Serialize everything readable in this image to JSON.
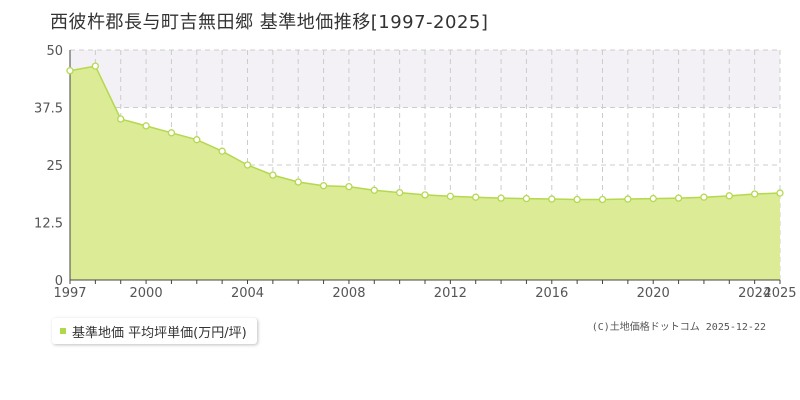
{
  "title": "西彼杵郡長与町吉無田郷 基準地価推移[1997-2025]",
  "legend_label": "基準地価 平均坪単価(万円/坪)",
  "copyright": "(C)土地価格ドットコム 2025-12-22",
  "colors": {
    "fill": "#dbeb96",
    "line": "#b5d84f",
    "band": "#f3f1f6",
    "grid": "#cccccc",
    "marker_fill": "#ffffff"
  },
  "chart_data": {
    "type": "area",
    "x": [
      1997,
      1998,
      1999,
      2000,
      2001,
      2002,
      2003,
      2004,
      2005,
      2006,
      2007,
      2008,
      2009,
      2010,
      2011,
      2012,
      2013,
      2014,
      2015,
      2016,
      2017,
      2018,
      2019,
      2020,
      2021,
      2022,
      2023,
      2024,
      2025
    ],
    "series": [
      {
        "name": "基準地価 平均坪単価(万円/坪)",
        "values": [
          45.5,
          46.5,
          35.0,
          33.5,
          32.0,
          30.5,
          28.0,
          25.0,
          22.8,
          21.3,
          20.5,
          20.3,
          19.5,
          19.0,
          18.5,
          18.2,
          18.0,
          17.8,
          17.7,
          17.6,
          17.5,
          17.5,
          17.6,
          17.7,
          17.8,
          18.0,
          18.3,
          18.7,
          18.9
        ]
      }
    ],
    "x_ticks": [
      "1997",
      "2000",
      "2004",
      "2008",
      "2012",
      "2016",
      "2020",
      "2024",
      "2025"
    ],
    "y_ticks": [
      "0",
      "12.5",
      "25",
      "37.5",
      "50"
    ],
    "xlim": [
      1997,
      2025
    ],
    "ylim": [
      0,
      50
    ],
    "grid": true
  }
}
